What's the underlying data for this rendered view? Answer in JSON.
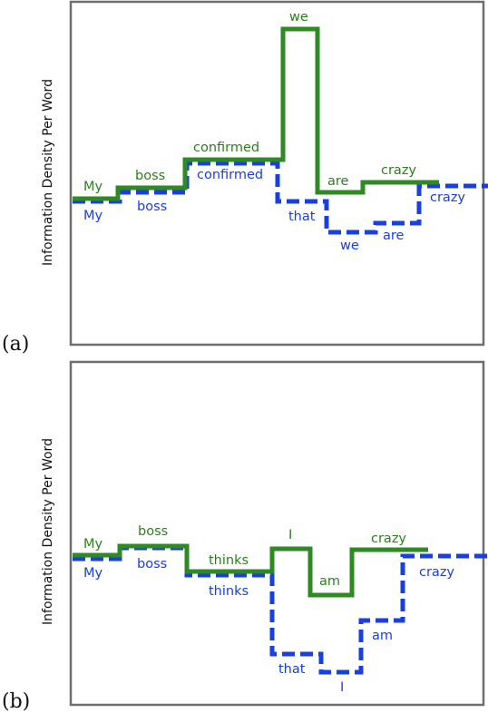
{
  "panels": [
    {
      "id": "a",
      "label": "(a)",
      "ylabel": "Information Density Per Word",
      "series_green": {
        "color": "#2f8a24",
        "words": [
          "My",
          "boss",
          "confirmed",
          "we",
          "are",
          "crazy"
        ]
      },
      "series_blue": {
        "color": "#1a3fe0",
        "words": [
          "My",
          "boss",
          "confirmed",
          "that",
          "we",
          "are",
          "crazy"
        ]
      }
    },
    {
      "id": "b",
      "label": "(b)",
      "ylabel": "Information Density Per Word",
      "series_green": {
        "color": "#2f8a24",
        "words": [
          "My",
          "boss",
          "thinks",
          "I",
          "am",
          "crazy"
        ]
      },
      "series_blue": {
        "color": "#1a3fe0",
        "words": [
          "My",
          "boss",
          "thinks",
          "that",
          "I",
          "am",
          "crazy"
        ]
      }
    }
  ]
}
